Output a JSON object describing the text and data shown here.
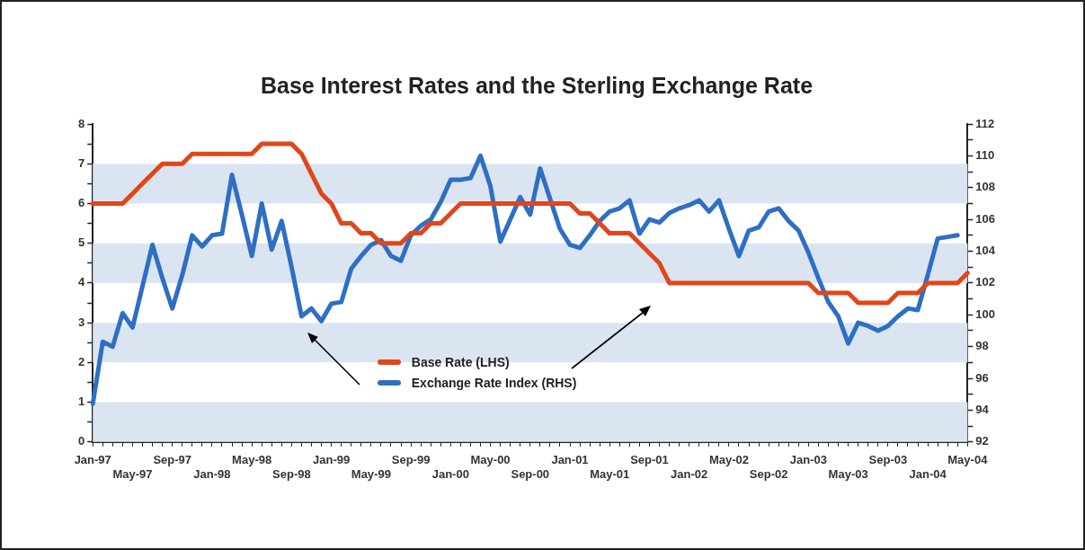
{
  "chart_data": {
    "type": "line",
    "title": "Base Interest Rates and the Sterling Exchange Rate",
    "categories": [
      "Jan-97",
      null,
      null,
      null,
      "May-97",
      null,
      null,
      null,
      "Sep-97",
      null,
      null,
      null,
      "Jan-98",
      null,
      null,
      null,
      "May-98",
      null,
      null,
      null,
      "Sep-98",
      null,
      null,
      null,
      "Jan-99",
      null,
      null,
      null,
      "May-99",
      null,
      null,
      null,
      "Sep-99",
      null,
      null,
      null,
      "Jan-00",
      null,
      null,
      null,
      "May-00",
      null,
      null,
      null,
      "Sep-00",
      null,
      null,
      null,
      "Jan-01",
      null,
      null,
      null,
      "May-01",
      null,
      null,
      null,
      "Sep-01",
      null,
      null,
      null,
      "Jan-02",
      null,
      null,
      null,
      "May-02",
      null,
      null,
      null,
      "Sep-02",
      null,
      null,
      null,
      "Jan-03",
      null,
      null,
      null,
      "May-03",
      null,
      null,
      null,
      "Sep-03",
      null,
      null,
      null,
      "Jan-04",
      null,
      null,
      null,
      "May-04"
    ],
    "series": [
      {
        "name": "Base Rate (LHS)",
        "color": "#e0461a",
        "values": [
          6,
          6,
          6,
          6,
          6.25,
          6.5,
          6.75,
          7,
          7,
          7,
          7.25,
          7.25,
          7.25,
          7.25,
          7.25,
          7.25,
          7.25,
          7.5,
          7.5,
          7.5,
          7.5,
          7.25,
          6.75,
          6.25,
          6,
          5.5,
          5.5,
          5.25,
          5.25,
          5,
          5,
          5,
          5.25,
          5.25,
          5.5,
          5.5,
          5.75,
          6,
          6,
          6,
          6,
          6,
          6,
          6,
          6,
          6,
          6,
          6,
          6,
          5.75,
          5.75,
          5.5,
          5.25,
          5.25,
          5.25,
          5,
          4.75,
          4.5,
          4,
          4,
          4,
          4,
          4,
          4,
          4,
          4,
          4,
          4,
          4,
          4,
          4,
          4,
          4,
          3.75,
          3.75,
          3.75,
          3.75,
          3.5,
          3.5,
          3.5,
          3.5,
          3.75,
          3.75,
          3.75,
          4,
          4,
          4,
          4,
          4.25
        ]
      },
      {
        "name": "Exchange Rate Index (RHS)",
        "color": "#2e6fc4",
        "axis": "y2",
        "values": [
          94.4,
          98.3,
          98.0,
          100.1,
          99.2,
          101.8,
          104.4,
          102.3,
          100.4,
          102.5,
          105.0,
          104.3,
          105.0,
          105.1,
          108.8,
          106.3,
          103.7,
          107.0,
          104.1,
          105.9,
          103.0,
          99.9,
          100.4,
          99.6,
          100.7,
          100.8,
          102.9,
          103.7,
          104.4,
          104.7,
          103.7,
          103.4,
          105.0,
          105.6,
          106.0,
          107.1,
          108.5,
          108.5,
          108.6,
          110.0,
          108.1,
          104.6,
          106.0,
          107.4,
          106.3,
          109.2,
          107.3,
          105.4,
          104.4,
          104.2,
          105.0,
          105.9,
          106.5,
          106.7,
          107.2,
          105.1,
          106.0,
          105.8,
          106.4,
          106.7,
          106.9,
          107.2,
          106.5,
          107.2,
          105.4,
          103.7,
          105.3,
          105.5,
          106.5,
          106.7,
          105.9,
          105.3,
          103.9,
          102.3,
          100.8,
          99.9,
          98.2,
          99.5,
          99.3,
          99.0,
          99.3,
          99.9,
          100.4,
          100.3,
          102.5,
          104.8,
          104.9,
          105.0,
          null
        ]
      }
    ],
    "ylim": [
      0,
      8
    ],
    "yticks": [
      0,
      {
        "value": 0.5,
        "label": null
      },
      1,
      {
        "value": 1.5,
        "label": null
      },
      2,
      {
        "value": 2.5,
        "label": null
      },
      3,
      {
        "value": 3.5,
        "label": null
      },
      4,
      {
        "value": 4.5,
        "label": null
      },
      5,
      {
        "value": 5.5,
        "label": null
      },
      6,
      {
        "value": 6.5,
        "label": null
      },
      7,
      {
        "value": 7.5,
        "label": null
      },
      8
    ],
    "y2lim": [
      92,
      112
    ],
    "y2ticks": [
      92,
      {
        "value": 93,
        "label": null
      },
      94,
      {
        "value": 95,
        "label": null
      },
      96,
      {
        "value": 97,
        "label": null
      },
      98,
      {
        "value": 99,
        "label": null
      },
      100,
      {
        "value": 101,
        "label": null
      },
      102,
      {
        "value": 103,
        "label": null
      },
      104,
      {
        "value": 105,
        "label": null
      },
      106,
      {
        "value": 107,
        "label": null
      },
      108,
      {
        "value": 109,
        "label": null
      },
      110,
      {
        "value": 111,
        "label": null
      },
      112
    ],
    "bands": [
      {
        "axis": "y",
        "from": 0,
        "to": 1,
        "color": "#dbe5f1"
      },
      {
        "axis": "y",
        "from": 2,
        "to": 3,
        "color": "#dbe5f1"
      },
      {
        "axis": "y",
        "from": 4,
        "to": 5,
        "color": "#dbe5f1"
      },
      {
        "axis": "y",
        "from": 6,
        "to": 7,
        "color": "#dbe5f1"
      }
    ],
    "legend": "bottom",
    "marker": "none",
    "line_style": "solid"
  }
}
